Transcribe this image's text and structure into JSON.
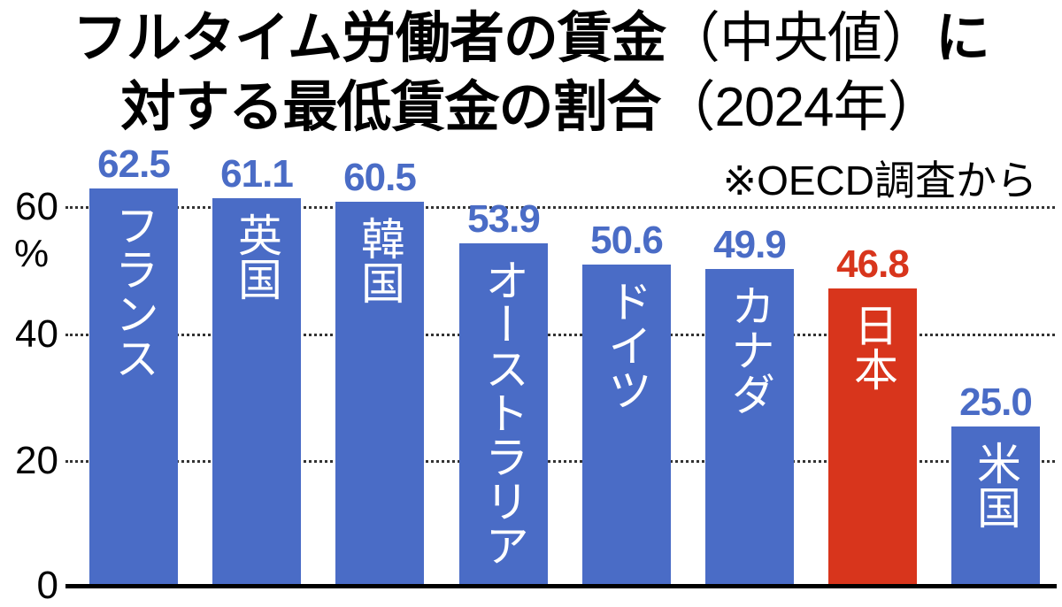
{
  "title": {
    "line1_main": "フルタイム労働者の賃金",
    "line1_paren": "（中央値）",
    "line1_tail": "に",
    "line2_main": "対する最低賃金の割合",
    "line2_paren": "（2024年）"
  },
  "source_note": "※OECD調査から",
  "axis": {
    "unit": "%",
    "ticks": [
      "0",
      "20",
      "40",
      "60"
    ]
  },
  "colors": {
    "bar": "#4a6cc6",
    "highlight": "#d8351c",
    "value_text": "#4a6cc6",
    "highlight_text": "#d8351c"
  },
  "bars": [
    {
      "label": "フランス",
      "value": "62.5"
    },
    {
      "label": "英国",
      "value": "61.1"
    },
    {
      "label": "韓国",
      "value": "60.5"
    },
    {
      "label": "オーストラリア",
      "value": "53.9"
    },
    {
      "label": "ドイツ",
      "value": "50.6"
    },
    {
      "label": "カナダ",
      "value": "49.9"
    },
    {
      "label": "日本",
      "value": "46.8"
    },
    {
      "label": "米国",
      "value": "25.0"
    }
  ],
  "chart_data": {
    "type": "bar",
    "title": "フルタイム労働者の賃金（中央値）に対する最低賃金の割合（2024年）",
    "subtitle": "※OECD調査から",
    "categories": [
      "フランス",
      "英国",
      "韓国",
      "オーストラリア",
      "ドイツ",
      "カナダ",
      "日本",
      "米国"
    ],
    "values": [
      62.5,
      61.1,
      60.5,
      53.9,
      50.6,
      49.9,
      46.8,
      25.0
    ],
    "highlight": "日本",
    "xlabel": "",
    "ylabel": "%",
    "ylim": [
      0,
      65
    ],
    "yticks": [
      0,
      20,
      40,
      60
    ],
    "grid": "horizontal dotted",
    "legend": "none"
  }
}
